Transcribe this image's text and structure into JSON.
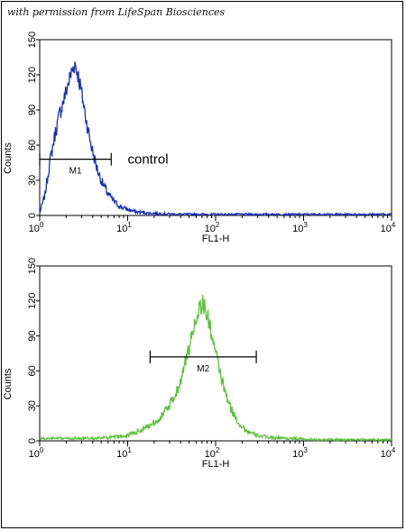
{
  "credit": "with permission from LifeSpan Biosciences",
  "chart_data": [
    {
      "type": "line",
      "xlabel": "FL1-H",
      "ylabel": "Counts",
      "xscale": "log",
      "xlim": [
        1,
        10000
      ],
      "ylim": [
        0,
        150
      ],
      "y_ticks": [
        "0",
        "30",
        "60",
        "90",
        "120",
        "150"
      ],
      "x_ticks": [
        {
          "base": "10",
          "exp": "0"
        },
        {
          "base": "10",
          "exp": "1"
        },
        {
          "base": "10",
          "exp": "2"
        },
        {
          "base": "10",
          "exp": "3"
        },
        {
          "base": "10",
          "exp": "4"
        }
      ],
      "color": "#1a2fb5",
      "series": [
        {
          "x": [
            1.0,
            1.15,
            1.3,
            1.5,
            1.7,
            1.9,
            2.1,
            2.3,
            2.5,
            2.7,
            2.9,
            3.2,
            3.5,
            3.9,
            4.4,
            5.0,
            5.8,
            6.8,
            8.0,
            10,
            13,
            17,
            25,
            40,
            70,
            150,
            400,
            1000,
            3000,
            10000
          ],
          "values": [
            2,
            18,
            45,
            70,
            88,
            100,
            112,
            122,
            130,
            122,
            110,
            92,
            75,
            58,
            42,
            30,
            20,
            13,
            8,
            5,
            3,
            2,
            1.5,
            1,
            1,
            1,
            1,
            1,
            1,
            1
          ]
        }
      ],
      "gate": {
        "label": "M1",
        "start": 1.0,
        "end": 6.5,
        "y": 48
      },
      "annotation": {
        "text": "control",
        "x": 10,
        "y": 48
      }
    },
    {
      "type": "line",
      "xlabel": "FL1-H",
      "ylabel": "Counts",
      "xscale": "log",
      "xlim": [
        1,
        10000
      ],
      "ylim": [
        0,
        150
      ],
      "y_ticks": [
        "0",
        "30",
        "60",
        "90",
        "120",
        "150"
      ],
      "x_ticks": [
        {
          "base": "10",
          "exp": "0"
        },
        {
          "base": "10",
          "exp": "1"
        },
        {
          "base": "10",
          "exp": "2"
        },
        {
          "base": "10",
          "exp": "3"
        },
        {
          "base": "10",
          "exp": "4"
        }
      ],
      "color": "#5cc23c",
      "series": [
        {
          "x": [
            1,
            2,
            4,
            7,
            10,
            15,
            20,
            25,
            30,
            35,
            40,
            45,
            50,
            55,
            60,
            65,
            70,
            75,
            80,
            90,
            100,
            115,
            130,
            150,
            180,
            220,
            280,
            400,
            700,
            1500,
            4000,
            10000
          ],
          "values": [
            2,
            2,
            2,
            3,
            5,
            10,
            16,
            22,
            30,
            40,
            52,
            66,
            80,
            94,
            106,
            114,
            118,
            115,
            108,
            92,
            75,
            55,
            40,
            27,
            16,
            9,
            5,
            3,
            2,
            1,
            1,
            1
          ],
          "noise": true
        }
      ],
      "gate": {
        "label": "M2",
        "start": 18,
        "end": 290,
        "y": 72
      }
    }
  ]
}
